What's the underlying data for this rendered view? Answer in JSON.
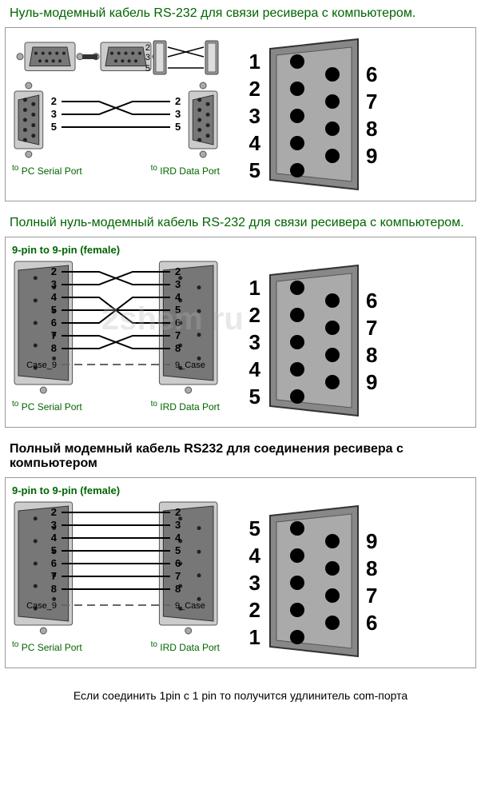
{
  "sections": [
    {
      "title": "Нуль-модемный кабель RS-232 для связи ресивера с компьютером.",
      "title_color": "#006400",
      "subtitle": "",
      "left_port_label": "PC Serial Port",
      "right_port_label": "IRD Data Port",
      "pins_left": [
        "2",
        "3",
        "5"
      ],
      "pins_right": [
        "2",
        "3",
        "5"
      ],
      "connections": [
        [
          0,
          1
        ],
        [
          1,
          0
        ],
        [
          2,
          2
        ]
      ],
      "case_row": false,
      "pinout_left_labels": [
        "1",
        "2",
        "3",
        "4",
        "5"
      ],
      "pinout_right_labels": [
        "6",
        "7",
        "8",
        "9"
      ],
      "show_top_connectors": true
    },
    {
      "title": "Полный нуль-модемный кабель RS-232 для связи ресивера с компьютером.",
      "title_color": "#006400",
      "subtitle": "9-pin to 9-pin (female)",
      "left_port_label": "PC Serial Port",
      "right_port_label": "IRD Data Port",
      "pins_left": [
        "2",
        "3",
        "4",
        "5",
        "6",
        "7",
        "8"
      ],
      "pins_right": [
        "2",
        "3",
        "4",
        "5",
        "6",
        "7",
        "8"
      ],
      "connections": [
        [
          0,
          1
        ],
        [
          1,
          0
        ],
        [
          2,
          4
        ],
        [
          3,
          3
        ],
        [
          4,
          2
        ],
        [
          5,
          6
        ],
        [
          6,
          5
        ]
      ],
      "case_row": true,
      "case_left": "Case_9",
      "case_right": "9_Case",
      "pinout_left_labels": [
        "1",
        "2",
        "3",
        "4",
        "5"
      ],
      "pinout_right_labels": [
        "6",
        "7",
        "8",
        "9"
      ],
      "show_top_connectors": false,
      "watermark": "2shem  ru"
    },
    {
      "title": "Полный модемный кабель RS232 для соединения ресивера  с компьютером",
      "title_color": "#000000",
      "title_bold": true,
      "subtitle": "9-pin to 9-pin (female)",
      "left_port_label": "PC Serial Port",
      "right_port_label": "IRD Data Port",
      "pins_left": [
        "2",
        "3",
        "4",
        "5",
        "6",
        "7",
        "8"
      ],
      "pins_right": [
        "2",
        "3",
        "4",
        "5",
        "6",
        "7",
        "8"
      ],
      "connections": [
        [
          0,
          0
        ],
        [
          1,
          1
        ],
        [
          2,
          2
        ],
        [
          3,
          3
        ],
        [
          4,
          4
        ],
        [
          5,
          5
        ],
        [
          6,
          6
        ]
      ],
      "case_row": true,
      "case_left": "Case_9",
      "case_right": "9_Case",
      "pinout_left_labels": [
        "5",
        "4",
        "3",
        "2",
        "1"
      ],
      "pinout_right_labels": [
        "9",
        "8",
        "7",
        "6"
      ],
      "show_top_connectors": false
    }
  ],
  "footer": "Если соединить 1pin с 1 pin то получится удлинитель com-порта",
  "colors": {
    "green": "#006400",
    "black": "#000000",
    "border": "#999999",
    "connector_body": "#888888",
    "connector_dark": "#555555",
    "pin_dot": "#000000",
    "wire": "#000000"
  },
  "font_sizes": {
    "title": 16,
    "subtitle": 13,
    "pin_label": 14,
    "pinout_label": 28,
    "port_label": 12,
    "footer": 14
  }
}
